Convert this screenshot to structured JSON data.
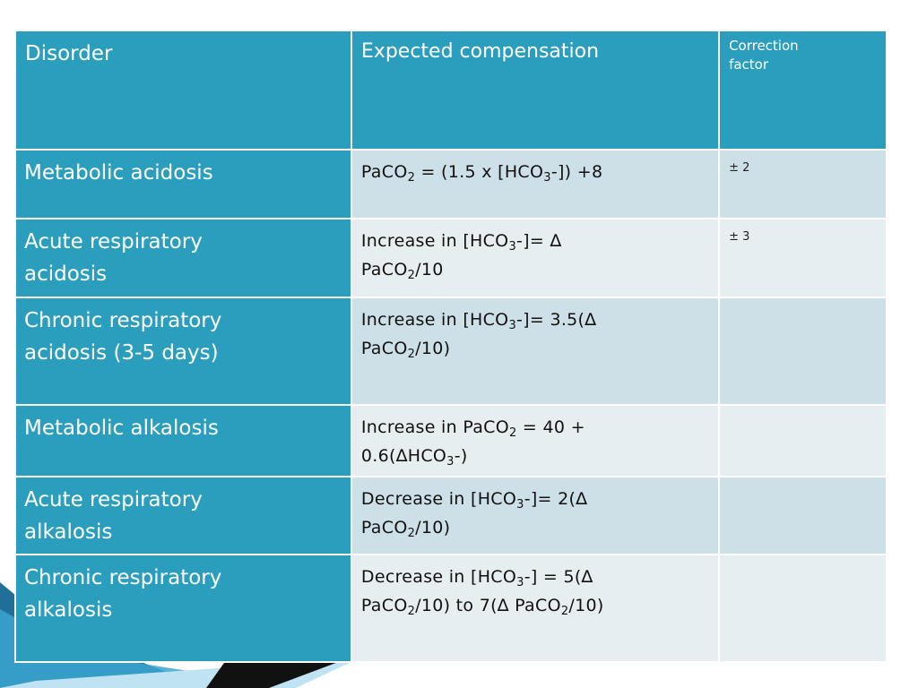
{
  "header": {
    "disorder": "Disorder",
    "expected": "Expected compensation",
    "correction_line1": "Correction",
    "correction_line2": "factor"
  },
  "rows": [
    {
      "disorder_lines": [
        "Metabolic acidosis"
      ],
      "formula_lines": [
        [
          {
            "t": "PaCO"
          },
          {
            "t": "2",
            "sub": true
          },
          {
            "t": " = (1.5 x [HCO"
          },
          {
            "t": "3",
            "sub": true
          },
          {
            "t": "-]) +8"
          }
        ]
      ],
      "correction": "± 2"
    },
    {
      "disorder_lines": [
        "Acute respiratory",
        "acidosis"
      ],
      "formula_lines": [
        [
          {
            "t": "Increase  in  [HCO"
          },
          {
            "t": "3",
            "sub": true
          },
          {
            "t": "-]= ∆"
          }
        ],
        [
          {
            "t": "PaCO"
          },
          {
            "t": "2",
            "sub": true
          },
          {
            "t": "/10"
          }
        ]
      ],
      "correction": "± 3"
    },
    {
      "disorder_lines": [
        "Chronic respiratory",
        "acidosis (3-5 days)"
      ],
      "formula_lines": [
        [
          {
            "t": "Increase  in  [HCO"
          },
          {
            "t": "3",
            "sub": true
          },
          {
            "t": "-]= 3.5(∆"
          }
        ],
        [
          {
            "t": "PaCO"
          },
          {
            "t": "2",
            "sub": true
          },
          {
            "t": "/10)"
          }
        ]
      ],
      "correction": ""
    },
    {
      "disorder_lines": [
        "Metabolic alkalosis"
      ],
      "formula_lines": [
        [
          {
            "t": "Increase in PaCO"
          },
          {
            "t": "2",
            "sub": true
          },
          {
            "t": " = 40 +"
          }
        ],
        [
          {
            "t": "0.6(∆HCO"
          },
          {
            "t": "3",
            "sub": true
          },
          {
            "t": "-)"
          }
        ]
      ],
      "correction": ""
    },
    {
      "disorder_lines": [
        "Acute respiratory",
        "alkalosis"
      ],
      "formula_lines": [
        [
          {
            "t": "Decrease in  [HCO"
          },
          {
            "t": "3",
            "sub": true
          },
          {
            "t": "-]= 2(∆"
          }
        ],
        [
          {
            "t": "PaCO"
          },
          {
            "t": "2",
            "sub": true
          },
          {
            "t": "/10)"
          }
        ]
      ],
      "correction": ""
    },
    {
      "disorder_lines": [
        "Chronic respiratory",
        "alkalosis"
      ],
      "formula_lines": [
        [
          {
            "t": "Decrease in  [HCO"
          },
          {
            "t": "3",
            "sub": true
          },
          {
            "t": "-] = 5(∆"
          }
        ],
        [
          {
            "t": "PaCO"
          },
          {
            "t": "2",
            "sub": true
          },
          {
            "t": "/10) to 7(∆ PaCO"
          },
          {
            "t": "2",
            "sub": true
          },
          {
            "t": "/10)"
          }
        ]
      ],
      "correction": ""
    }
  ],
  "colors": {
    "header_bg": "#2c9ebd",
    "row_band_dark": "#cddfe7",
    "row_band_light": "#e7eef2"
  }
}
